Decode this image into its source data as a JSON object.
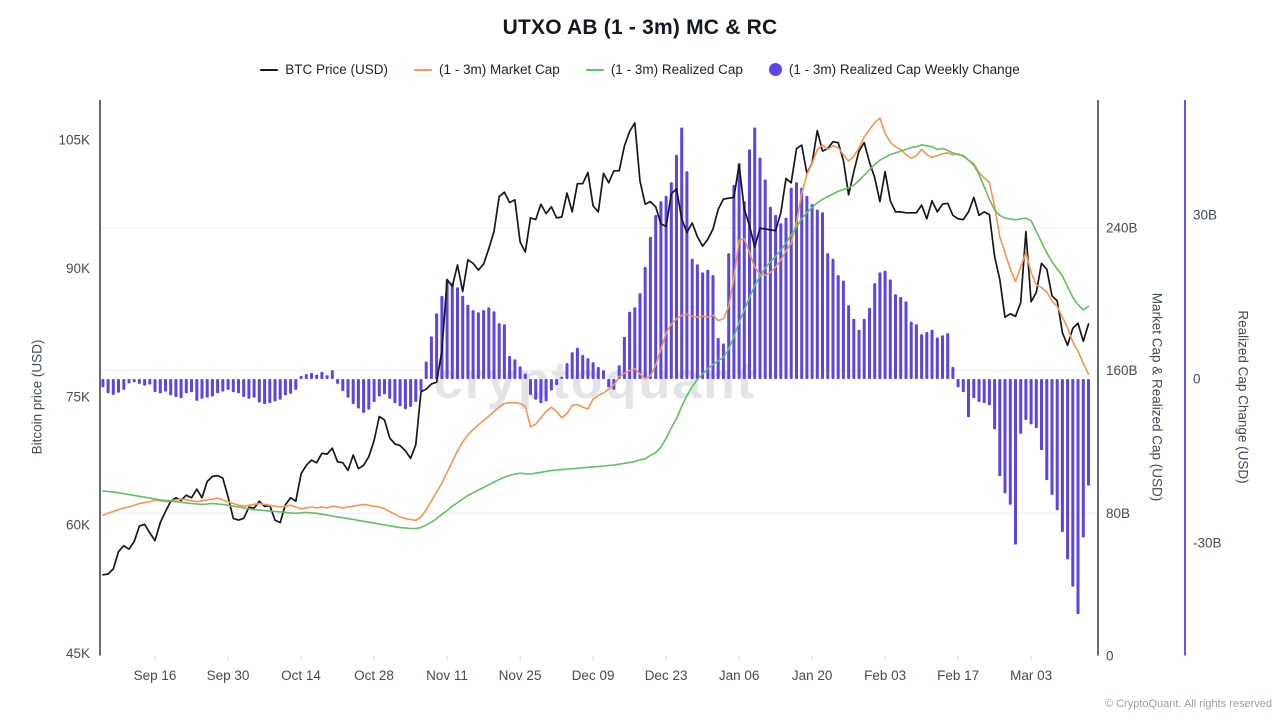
{
  "title": "UTXO AB (1 - 3m) MC & RC",
  "watermark": "cryptoquant",
  "copyright": "© CryptoQuant. All rights reserved",
  "legend": [
    {
      "label": "BTC Price (USD)",
      "swatch": "line",
      "color": "#17181c"
    },
    {
      "label": "(1 - 3m) Market Cap",
      "swatch": "line",
      "color": "#f79552"
    },
    {
      "label": "(1 - 3m) Realized Cap",
      "swatch": "line",
      "color": "#63c063"
    },
    {
      "label": "(1 - 3m) Realized Cap Weekly Change",
      "swatch": "dot",
      "color": "#5e46e6"
    }
  ],
  "colors": {
    "bar": "#5b46e2",
    "axis_dark": "#262a33",
    "axis_purple": "#6952ef",
    "gridline": "#eef0f3",
    "tick_text": "#454c59",
    "tick_mark": "#d8dbe0"
  },
  "chart_data": {
    "type": "mixed line + bar (daily)",
    "start_date": "Sep 6",
    "end_date": "Mar 14",
    "x_axis": {
      "tick_labels": [
        "Sep 16",
        "Sep 30",
        "Oct 14",
        "Oct 28",
        "Nov 11",
        "Nov 25",
        "Dec 09",
        "Dec 23",
        "Jan 06",
        "Jan 20",
        "Feb 03",
        "Feb 17",
        "Mar 03"
      ],
      "tick_day_indices": [
        10,
        24,
        38,
        52,
        66,
        80,
        94,
        108,
        122,
        136,
        150,
        164,
        178
      ]
    },
    "axes": {
      "left": {
        "title": "Bitcoin price (USD)",
        "unit": "K",
        "tick_labels": [
          "105K",
          "90K",
          "75K",
          "60K",
          "45K"
        ],
        "tick_values": [
          105,
          90,
          75,
          60,
          45
        ]
      },
      "right_mc": {
        "title": "Market Cap & Realized Cap (USD)",
        "unit": "B",
        "tick_labels": [
          "240B",
          "160B",
          "80B",
          "0"
        ],
        "tick_values": [
          240,
          160,
          80,
          0
        ],
        "grid_values": [
          240,
          160,
          80
        ]
      },
      "right_chg": {
        "title": "Realized Cap Change (USD)",
        "unit": "B",
        "tick_labels": [
          "30B",
          "0",
          "-30B"
        ],
        "tick_values": [
          30,
          0,
          -30
        ]
      }
    },
    "series": [
      {
        "name": "BTC Price (USD)",
        "type": "line",
        "axis": "price",
        "color": "#17181c",
        "width": 1.7,
        "values": [
          54.2,
          54.3,
          54.9,
          56.9,
          57.6,
          57.2,
          58.1,
          59.9,
          60.1,
          59.1,
          58.2,
          60.3,
          61.6,
          62.8,
          63.2,
          62.9,
          63.5,
          63.2,
          64.2,
          63.2,
          65.1,
          65.7,
          65.8,
          65.5,
          63.3,
          60.8,
          60.6,
          60.8,
          62.1,
          62.0,
          62.8,
          62.2,
          62.3,
          60.6,
          60.3,
          62.4,
          63.2,
          62.8,
          66.0,
          67.0,
          67.6,
          67.3,
          68.4,
          68.3,
          69.0,
          67.4,
          67.3,
          66.4,
          68.2,
          66.6,
          67.0,
          68.0,
          69.9,
          72.7,
          72.3,
          70.2,
          69.5,
          69.3,
          68.7,
          67.8,
          69.4,
          75.6,
          75.9,
          76.5,
          76.7,
          80.4,
          88.7,
          87.9,
          90.4,
          87.3,
          91.0,
          90.6,
          89.8,
          90.5,
          92.3,
          94.3,
          98.4,
          98.9,
          97.7,
          98.0,
          93.1,
          91.9,
          95.9,
          95.7,
          97.5,
          96.4,
          97.2,
          95.9,
          96.0,
          98.8,
          96.6,
          99.9,
          99.9,
          101.2,
          97.3,
          96.6,
          101.1,
          100.0,
          101.4,
          101.4,
          104.3,
          106.0,
          107.0,
          100.2,
          97.5,
          97.8,
          97.2,
          95.2,
          94.9,
          98.7,
          99.3,
          95.8,
          94.2,
          95.3,
          93.7,
          92.6,
          93.4,
          94.6,
          96.9,
          98.1,
          98.2,
          98.3,
          102.1,
          96.9,
          95.0,
          92.5,
          94.7,
          94.6,
          94.5,
          94.4,
          96.5,
          100.5,
          100.0,
          104.0,
          104.4,
          101.1,
          102.3,
          106.1,
          103.7,
          104.0,
          104.8,
          104.7,
          102.6,
          98.6,
          101.3,
          103.7,
          104.7,
          102.4,
          100.6,
          97.8,
          101.3,
          97.9,
          96.6,
          96.6,
          96.5,
          96.5,
          96.5,
          97.4,
          95.8,
          97.9,
          96.6,
          97.5,
          97.6,
          96.2,
          95.8,
          95.7,
          96.6,
          98.3,
          96.2,
          96.6,
          96.3,
          91.4,
          88.7,
          84.3,
          84.7,
          84.4,
          86.0,
          94.3,
          86.1,
          87.2,
          90.6,
          89.9,
          86.8,
          86.2,
          82.5,
          81.0,
          83.0,
          83.6,
          81.5,
          83.5
        ]
      },
      {
        "name": "(1 - 3m) Market Cap",
        "type": "line",
        "axis": "mc",
        "color": "#f79552",
        "width": 1.6,
        "values": [
          79,
          80,
          81,
          82,
          83,
          83.5,
          84.5,
          85.5,
          86,
          86.5,
          87.5,
          87,
          86.5,
          87,
          87.5,
          88,
          87.5,
          87,
          86.5,
          87,
          87.5,
          88,
          88.5,
          87.5,
          86.5,
          85.5,
          84.5,
          84,
          84.5,
          85,
          85.5,
          85,
          84.5,
          84,
          83.5,
          84,
          84.5,
          83.5,
          82.5,
          83,
          83.5,
          83,
          83.5,
          83,
          84,
          83.5,
          83,
          83.5,
          84,
          84.5,
          85,
          84.5,
          84,
          83.5,
          82.5,
          81,
          79.5,
          78,
          77,
          76.5,
          76,
          78,
          82,
          87,
          92,
          97,
          103,
          109,
          115,
          120,
          124,
          127,
          129.5,
          132,
          134.5,
          137,
          139.5,
          141.5,
          142,
          142,
          141.5,
          140,
          128.5,
          130,
          133.5,
          137,
          139.5,
          137,
          133.5,
          136,
          140.5,
          141,
          139.5,
          138.5,
          144,
          146,
          147.5,
          149.5,
          152,
          156.5,
          158.5,
          160,
          161,
          158,
          155.5,
          157,
          163,
          172,
          181,
          186,
          189,
          191,
          191.5,
          190.5,
          190,
          190.5,
          190,
          191,
          188,
          189,
          196,
          212,
          233,
          234,
          226,
          218,
          214,
          213.5,
          215,
          218,
          222,
          227,
          231.5,
          243,
          259,
          270,
          276,
          284,
          286.5,
          284,
          286,
          285,
          281,
          277.5,
          280,
          285,
          291,
          295,
          299,
          301.5,
          293,
          288,
          285.5,
          284,
          281,
          279,
          280.5,
          284,
          281,
          279.5,
          280.5,
          281.5,
          282,
          281,
          281.5,
          280,
          278,
          276,
          271,
          268,
          265.5,
          252,
          235,
          226,
          217,
          210,
          218,
          226,
          215,
          208,
          206.5,
          204,
          199,
          196,
          190,
          184,
          176,
          171,
          164,
          158
        ]
      },
      {
        "name": "(1 - 3m) Realized Cap",
        "type": "line",
        "axis": "mc",
        "color": "#63c063",
        "width": 1.6,
        "values": [
          92.5,
          92.2,
          92,
          91.5,
          91,
          90.5,
          90,
          89.5,
          89,
          88.5,
          88,
          87.5,
          87.2,
          87,
          86.5,
          86.2,
          85.8,
          85.5,
          85.2,
          85,
          85.2,
          85.5,
          85.2,
          85,
          84.5,
          84,
          83.5,
          83,
          82.5,
          82,
          81.8,
          81.5,
          81.2,
          81,
          80.8,
          80.5,
          80.2,
          80,
          80.2,
          80.5,
          80.2,
          80,
          79.5,
          79,
          78.5,
          78,
          77.5,
          77,
          76.5,
          76,
          75.5,
          75,
          74.5,
          74,
          73.5,
          73,
          72.5,
          72,
          71.8,
          71.5,
          71.5,
          72,
          73.5,
          75,
          77,
          79.5,
          81.5,
          84,
          86,
          88,
          90,
          91.5,
          93,
          94.5,
          96,
          97.5,
          99,
          100.2,
          101.2,
          102,
          102.5,
          102.2,
          102,
          102.5,
          103,
          103.5,
          104,
          104.2,
          104.5,
          104.8,
          105,
          105.2,
          105.5,
          105.8,
          106,
          106.2,
          106.5,
          106.8,
          107,
          107.5,
          108,
          108.5,
          109,
          110,
          110.5,
          112.5,
          114,
          117,
          122,
          128,
          133,
          140,
          146,
          151,
          155,
          158,
          161,
          163.5,
          165.5,
          167.5,
          172,
          179,
          187,
          194,
          201,
          207.5,
          213,
          217.5,
          221,
          224,
          227.5,
          231.5,
          236,
          240.5,
          245,
          248.5,
          251.5,
          254,
          256,
          257.5,
          259,
          260.5,
          261.5,
          262.5,
          264,
          266.5,
          269.5,
          272.5,
          275.5,
          278,
          279.5,
          281,
          282,
          283,
          284,
          285,
          285.5,
          286.5,
          286,
          285.5,
          284,
          284.5,
          283.5,
          282,
          281,
          280.5,
          278,
          275,
          270,
          263,
          256,
          250,
          247,
          245.5,
          245,
          244.5,
          245,
          245.5,
          244,
          238,
          232,
          226,
          221,
          217,
          213,
          207,
          201,
          197,
          194,
          196
        ]
      },
      {
        "name": "(1 - 3m) Realized Cap Weekly Change",
        "type": "bar",
        "axis": "chg",
        "color": "#5b46e2",
        "values": [
          -1.5,
          -2.6,
          -2.9,
          -2.5,
          -2.0,
          -0.8,
          -0.6,
          -0.9,
          -1.2,
          -1.0,
          -2.4,
          -2.6,
          -2.3,
          -3.0,
          -3.3,
          -3.5,
          -2.6,
          -2.4,
          -4.0,
          -3.6,
          -3.4,
          -3.2,
          -2.6,
          -2.3,
          -2.0,
          -2.4,
          -2.6,
          -3.3,
          -3.6,
          -3.4,
          -4.3,
          -4.6,
          -4.4,
          -4.1,
          -3.8,
          -3.0,
          -2.7,
          -2.0,
          0.6,
          0.9,
          1.1,
          0.8,
          1.3,
          0.7,
          1.6,
          -0.9,
          -2.2,
          -3.4,
          -4.6,
          -5.4,
          -6.2,
          -5.6,
          -4.2,
          -3.2,
          -2.8,
          -3.6,
          -4.4,
          -5.0,
          -5.5,
          -5.1,
          -4.2,
          -2.2,
          3.2,
          7.8,
          12.0,
          15.2,
          18.1,
          17.6,
          16.8,
          15.2,
          13.6,
          12.6,
          12.2,
          12.6,
          13.1,
          12.4,
          10.2,
          10.0,
          4.2,
          3.6,
          2.3,
          1.0,
          -2.9,
          -3.8,
          -4.4,
          -4.1,
          -2.1,
          -1.1,
          0.4,
          2.9,
          4.9,
          5.7,
          4.4,
          3.8,
          3.1,
          2.2,
          1.6,
          -1.5,
          -2.0,
          2.5,
          7.7,
          12.3,
          13.1,
          15.7,
          20.5,
          26.0,
          30.0,
          32.5,
          33.5,
          36.0,
          41.0,
          46.0,
          38.0,
          22.0,
          21.0,
          19.5,
          20.0,
          19.0,
          7.5,
          6.5,
          23.0,
          35.5,
          39.5,
          32.5,
          42.0,
          46.0,
          40.5,
          36.5,
          31.5,
          30.0,
          28.5,
          29.5,
          35.0,
          36.0,
          35.0,
          33.5,
          32.0,
          31.0,
          30.5,
          23.0,
          22.0,
          19.0,
          18.0,
          13.5,
          11.0,
          9.0,
          11.0,
          13.0,
          17.5,
          19.5,
          19.8,
          18.2,
          15.5,
          15.0,
          14.2,
          10.5,
          10.0,
          8.2,
          8.6,
          9.0,
          7.6,
          8.0,
          8.4,
          2.2,
          -1.5,
          -2.4,
          -7.0,
          -3.5,
          -4.2,
          -4.4,
          -4.8,
          -9.2,
          -17.8,
          -20.9,
          -23.0,
          -30.3,
          -10.0,
          -7.5,
          -8.3,
          -9.0,
          -13.0,
          -18.5,
          -21.2,
          -24.0,
          -28.0,
          -33.0,
          -38.0,
          -43.0,
          -29.0,
          -19.5
        ]
      }
    ]
  }
}
